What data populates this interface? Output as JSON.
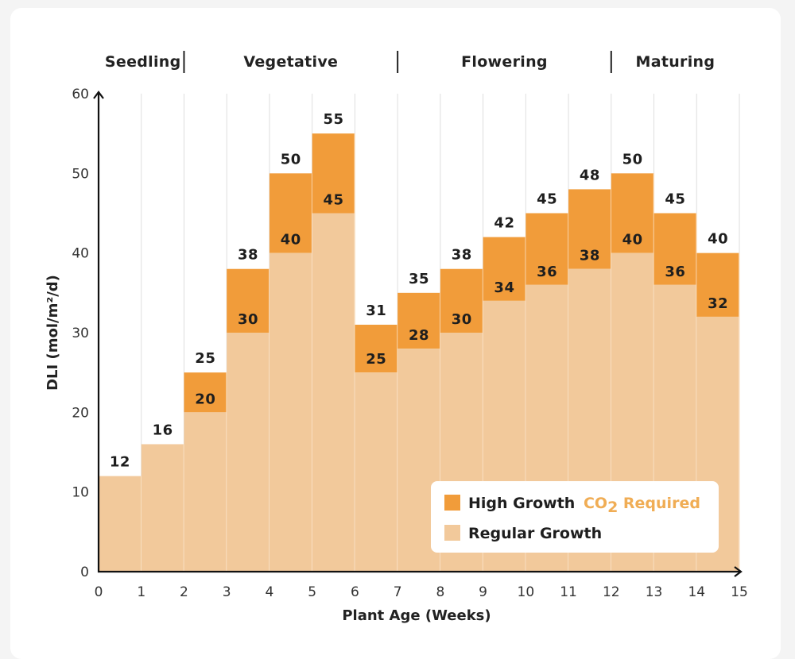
{
  "chart_data": {
    "type": "bar",
    "stacked": true,
    "title": "",
    "xlabel": "Plant Age (Weeks)",
    "ylabel": "DLI (mol/m²/d)",
    "xlim": [
      0,
      15
    ],
    "ylim": [
      0,
      60
    ],
    "x_ticks": [
      "0",
      "1",
      "2",
      "3",
      "4",
      "5",
      "6",
      "7",
      "8",
      "9",
      "10",
      "11",
      "12",
      "13",
      "14",
      "15"
    ],
    "y_ticks": [
      "0",
      "10",
      "20",
      "30",
      "40",
      "50",
      "60"
    ],
    "grid": "vertical",
    "phases": [
      {
        "name": "Seedling",
        "start": 0,
        "end": 2
      },
      {
        "name": "Vegetative",
        "start": 2,
        "end": 7
      },
      {
        "name": "Flowering",
        "start": 7,
        "end": 12
      },
      {
        "name": "Maturing",
        "start": 12,
        "end": 15
      }
    ],
    "weeks": [
      0,
      1,
      2,
      3,
      4,
      5,
      6,
      7,
      8,
      9,
      10,
      11,
      12,
      13,
      14
    ],
    "series": [
      {
        "name": "Regular Growth",
        "color": "#f2c99b",
        "values": [
          12,
          16,
          20,
          30,
          40,
          45,
          25,
          28,
          30,
          34,
          36,
          38,
          40,
          36,
          32
        ]
      },
      {
        "name": "High Growth",
        "color": "#f19c3a",
        "values": [
          null,
          null,
          25,
          38,
          50,
          55,
          31,
          35,
          38,
          42,
          45,
          48,
          50,
          45,
          40
        ]
      }
    ],
    "legend": {
      "position": "bottom-right",
      "items": [
        {
          "label": "High Growth",
          "suffix": "CO",
          "suffix_sub": "2",
          "suffix_end": " Required",
          "color": "#f19c3a"
        },
        {
          "label": "Regular Growth",
          "color": "#f2c99b"
        }
      ]
    }
  },
  "colors": {
    "background": "#f4f4f4",
    "card": "#ffffff",
    "regular": "#f2c99b",
    "high": "#f19c3a",
    "accent_text": "#f0ad55",
    "grid": "#dedede",
    "axis": "#111111"
  }
}
